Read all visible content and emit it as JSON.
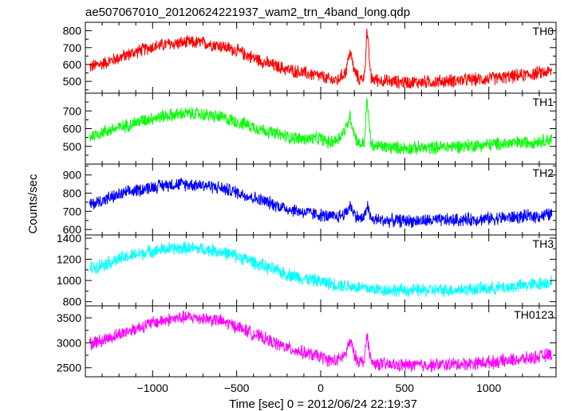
{
  "title": "ae507067010_20120624221937_wam2_trn_4band_long.qdp",
  "xlabel": "Time [sec] 0 = 2012/06/24 22:19:37",
  "ylabel": "Counts/sec",
  "chart_data": [
    {
      "type": "line",
      "panel_label": "TH0",
      "color": "#ff0000",
      "xlim": [
        -1400,
        1400
      ],
      "ylim": [
        430,
        850
      ],
      "yticks": [
        500,
        600,
        700,
        800
      ],
      "series": [
        {
          "x": [
            -1375,
            -1300,
            -1200,
            -1100,
            -1000,
            -900,
            -800,
            -700,
            -600,
            -500,
            -400,
            -300,
            -200,
            -100,
            0,
            50,
            100,
            150,
            175,
            200,
            230,
            260,
            275,
            300,
            400,
            500,
            600,
            700,
            800,
            900,
            1000,
            1100,
            1200,
            1300,
            1375
          ],
          "values": [
            585,
            605,
            640,
            675,
            705,
            722,
            730,
            728,
            712,
            682,
            640,
            600,
            570,
            550,
            530,
            510,
            505,
            560,
            680,
            560,
            510,
            530,
            800,
            515,
            500,
            495,
            495,
            500,
            505,
            510,
            515,
            525,
            535,
            550,
            560
          ]
        }
      ]
    },
    {
      "type": "line",
      "panel_label": "TH1",
      "color": "#00ff00",
      "xlim": [
        -1400,
        1400
      ],
      "ylim": [
        400,
        800
      ],
      "yticks": [
        500,
        600,
        700
      ],
      "series": [
        {
          "x": [
            -1375,
            -1300,
            -1200,
            -1100,
            -1000,
            -900,
            -800,
            -700,
            -600,
            -500,
            -400,
            -300,
            -200,
            -100,
            0,
            50,
            100,
            150,
            175,
            200,
            230,
            260,
            275,
            300,
            400,
            500,
            600,
            700,
            800,
            900,
            1000,
            1100,
            1200,
            1300,
            1375
          ],
          "values": [
            555,
            580,
            605,
            635,
            660,
            675,
            685,
            680,
            665,
            640,
            610,
            580,
            555,
            540,
            545,
            520,
            540,
            600,
            670,
            570,
            510,
            520,
            760,
            505,
            495,
            490,
            490,
            495,
            500,
            505,
            510,
            515,
            520,
            530,
            540
          ]
        }
      ]
    },
    {
      "type": "line",
      "panel_label": "TH2",
      "color": "#0000ff",
      "xlim": [
        -1400,
        1400
      ],
      "ylim": [
        570,
        960
      ],
      "yticks": [
        600,
        700,
        800,
        900
      ],
      "series": [
        {
          "x": [
            -1375,
            -1300,
            -1200,
            -1100,
            -1000,
            -900,
            -800,
            -700,
            -600,
            -500,
            -400,
            -300,
            -200,
            -100,
            0,
            50,
            100,
            150,
            175,
            200,
            230,
            260,
            275,
            300,
            400,
            500,
            600,
            700,
            800,
            900,
            1000,
            1100,
            1200,
            1300,
            1375
          ],
          "values": [
            735,
            760,
            790,
            815,
            835,
            848,
            850,
            845,
            830,
            805,
            775,
            745,
            715,
            695,
            680,
            670,
            670,
            690,
            735,
            685,
            660,
            665,
            740,
            655,
            650,
            648,
            648,
            650,
            652,
            655,
            660,
            665,
            670,
            675,
            685
          ]
        }
      ]
    },
    {
      "type": "line",
      "panel_label": "TH3",
      "color": "#00ffff",
      "xlim": [
        -1400,
        1400
      ],
      "ylim": [
        760,
        1430
      ],
      "yticks": [
        800,
        1000,
        1200,
        1400
      ],
      "series": [
        {
          "x": [
            -1375,
            -1300,
            -1200,
            -1100,
            -1000,
            -900,
            -800,
            -700,
            -600,
            -500,
            -400,
            -300,
            -200,
            -100,
            0,
            100,
            200,
            300,
            400,
            500,
            600,
            700,
            800,
            900,
            1000,
            1100,
            1200,
            1300,
            1375
          ],
          "values": [
            1110,
            1150,
            1200,
            1245,
            1280,
            1300,
            1305,
            1298,
            1275,
            1230,
            1175,
            1110,
            1060,
            1020,
            990,
            960,
            940,
            920,
            910,
            905,
            905,
            908,
            912,
            918,
            925,
            935,
            950,
            970,
            990
          ]
        }
      ]
    },
    {
      "type": "line",
      "panel_label": "TH0123",
      "color": "#ff00ff",
      "xlim": [
        -1400,
        1400
      ],
      "ylim": [
        2320,
        3740
      ],
      "yticks": [
        2500,
        3000,
        3500
      ],
      "series": [
        {
          "x": [
            -1375,
            -1300,
            -1200,
            -1100,
            -1000,
            -900,
            -800,
            -700,
            -600,
            -500,
            -400,
            -300,
            -200,
            -100,
            0,
            50,
            100,
            150,
            175,
            200,
            230,
            260,
            275,
            300,
            400,
            500,
            600,
            700,
            800,
            900,
            1000,
            1100,
            1200,
            1300,
            1375
          ],
          "values": [
            2980,
            3050,
            3170,
            3290,
            3400,
            3470,
            3510,
            3495,
            3440,
            3330,
            3180,
            3030,
            2900,
            2800,
            2720,
            2650,
            2640,
            2780,
            3050,
            2750,
            2620,
            2640,
            3180,
            2600,
            2560,
            2550,
            2550,
            2560,
            2570,
            2590,
            2610,
            2640,
            2670,
            2720,
            2780
          ]
        }
      ]
    }
  ],
  "xticks": [
    -1000,
    -500,
    0,
    500,
    1000
  ],
  "xtick_labels": [
    "−1000",
    "−500",
    "0",
    "500",
    "1000"
  ]
}
